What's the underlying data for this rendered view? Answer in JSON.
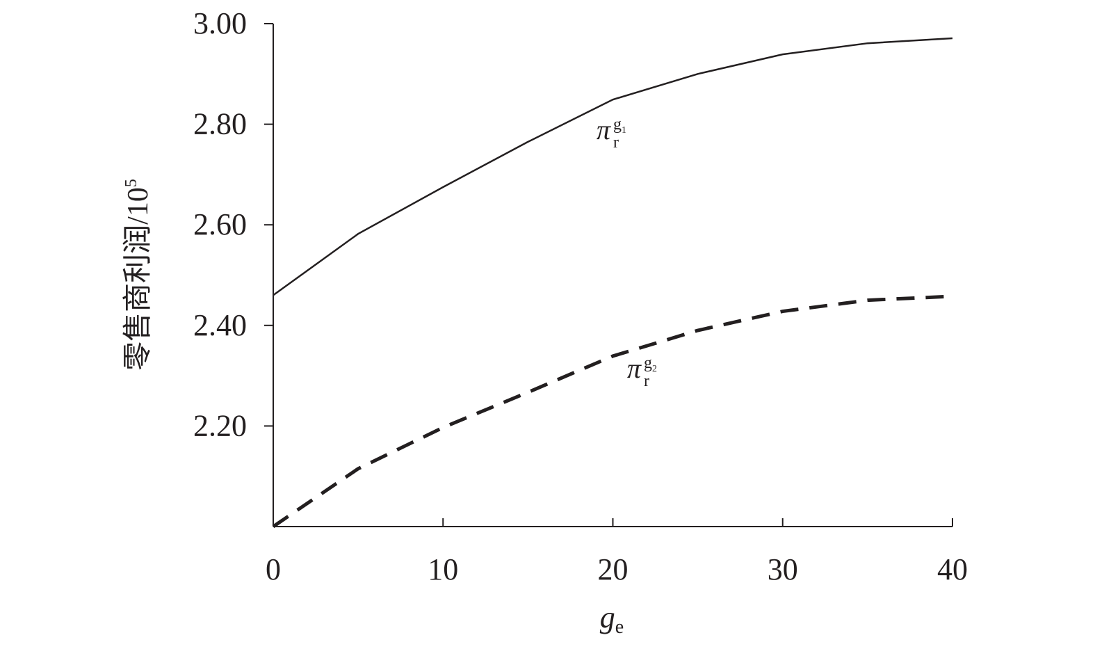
{
  "chart_data": {
    "type": "line",
    "ylabel": "零售商利润/10",
    "ylabel_sup": "5",
    "xlabel": "g",
    "xlabel_sub": "e",
    "x": [
      0,
      5,
      10,
      15,
      20,
      25,
      30,
      35,
      40
    ],
    "series": [
      {
        "color": "#231f20",
        "dash": "solid",
        "values": [
          2.46,
          2.582,
          2.675,
          2.765,
          2.849,
          2.9,
          2.939,
          2.961,
          2.971
        ]
      },
      {
        "color": "#231f20",
        "dash": "dashed",
        "values": [
          2.0,
          2.115,
          2.197,
          2.267,
          2.339,
          2.39,
          2.428,
          2.45,
          2.458
        ]
      }
    ],
    "annotations": [
      {
        "symbol": "π",
        "sub": "r",
        "sup": "g",
        "sup_sub": "1"
      },
      {
        "symbol": "π",
        "sub": "r",
        "sup": "g",
        "sup_sub": "2"
      }
    ],
    "xlim": [
      0,
      40
    ],
    "xticks": [
      0,
      10,
      20,
      30,
      40
    ],
    "ylim": [
      2.0,
      3.0
    ],
    "yticks": [
      {
        "value": 2.2,
        "label": "2.20"
      },
      {
        "value": 2.4,
        "label": "2.40"
      },
      {
        "value": 2.6,
        "label": "2.60"
      },
      {
        "value": 2.8,
        "label": "2.80"
      },
      {
        "value": 3.0,
        "label": "3.00"
      }
    ]
  }
}
